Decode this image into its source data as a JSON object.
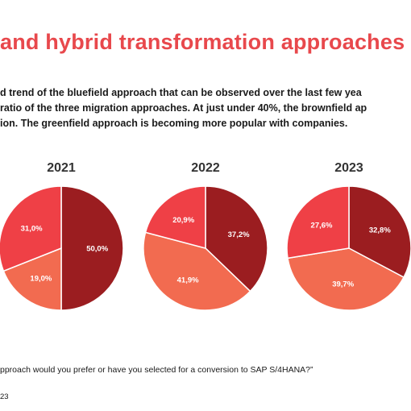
{
  "slide": {
    "title": "and hybrid transformation approaches",
    "body_lines": [
      "d trend of the bluefield approach that can be observed over the last few yea",
      "ratio of the three migration approaches. At just under 40%, the brownfield ap",
      "ion. The greenfield approach is becoming more popular with companies."
    ],
    "footnote": "pproach would you prefer or have you selected for a conversion to SAP S/4HANA?”",
    "source": "23"
  },
  "colors": {
    "dark_red": "#9b1d20",
    "salmon": "#f26b50",
    "bright_red": "#ef4046",
    "title": "#e8484c"
  },
  "chart_data": [
    {
      "type": "pie",
      "title": "2021",
      "slices": [
        {
          "value": 50.0,
          "label": "50,0%",
          "color": "#9b1d20"
        },
        {
          "value": 19.0,
          "label": "19,0%",
          "color": "#f26b50"
        },
        {
          "value": 31.0,
          "label": "31,0%",
          "color": "#ef4046"
        }
      ]
    },
    {
      "type": "pie",
      "title": "2022",
      "slices": [
        {
          "value": 37.2,
          "label": "37,2%",
          "color": "#9b1d20"
        },
        {
          "value": 41.9,
          "label": "41,9%",
          "color": "#f26b50"
        },
        {
          "value": 20.9,
          "label": "20,9%",
          "color": "#ef4046"
        }
      ]
    },
    {
      "type": "pie",
      "title": "2023",
      "slices": [
        {
          "value": 32.8,
          "label": "32,8%",
          "color": "#9b1d20"
        },
        {
          "value": 39.7,
          "label": "39,7%",
          "color": "#f26b50"
        },
        {
          "value": 27.6,
          "label": "27,6%",
          "color": "#ef4046"
        }
      ]
    }
  ]
}
